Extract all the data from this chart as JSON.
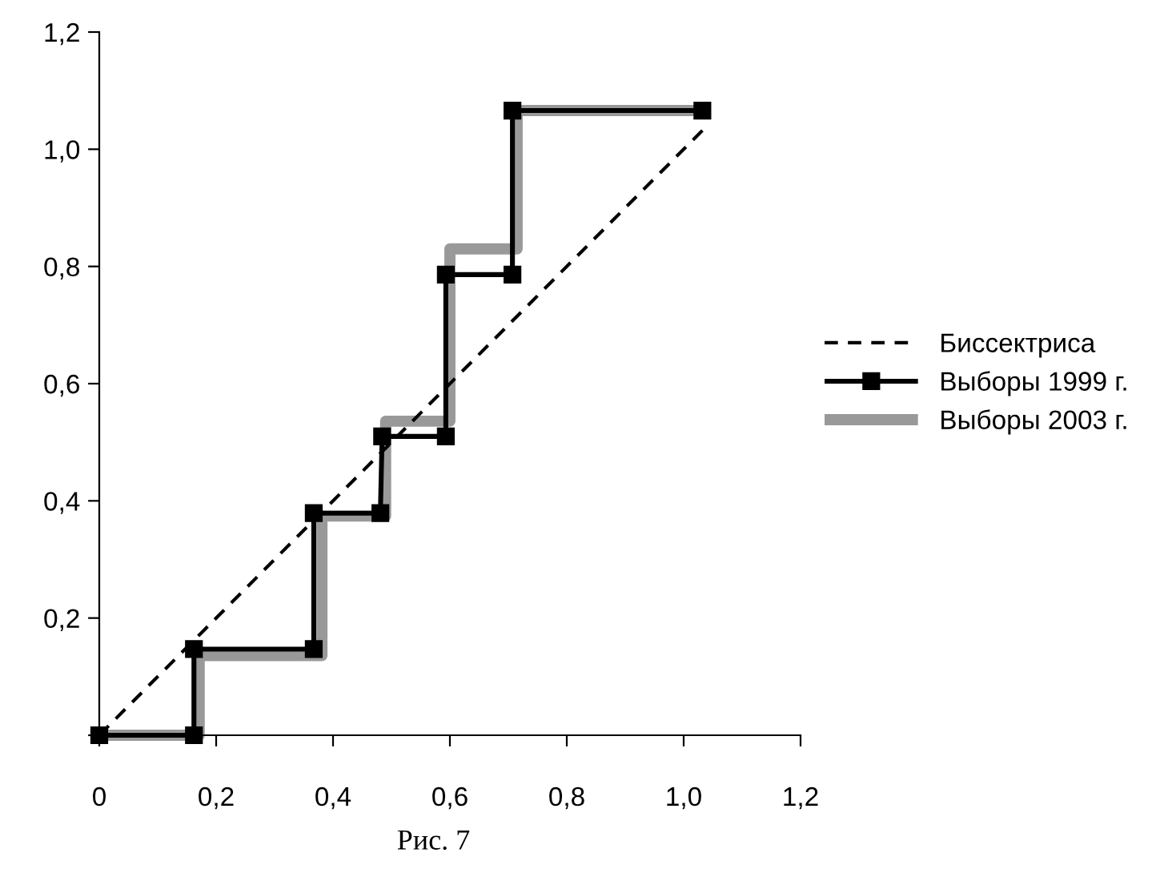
{
  "chart_data": {
    "type": "line",
    "xlim": [
      0,
      1.2
    ],
    "ylim": [
      0,
      1.2
    ],
    "xticks": [
      {
        "value": 0,
        "label": "0"
      },
      {
        "value": 0.2,
        "label": "0,2"
      },
      {
        "value": 0.4,
        "label": "0,4"
      },
      {
        "value": 0.6,
        "label": "0,6"
      },
      {
        "value": 0.8,
        "label": "0,8"
      },
      {
        "value": 1.0,
        "label": "1,0"
      },
      {
        "value": 1.2,
        "label": "1,2"
      }
    ],
    "yticks": [
      {
        "value": 0,
        "label": null
      },
      {
        "value": 0.2,
        "label": "0,2"
      },
      {
        "value": 0.4,
        "label": "0,4"
      },
      {
        "value": 0.6,
        "label": "0,6"
      },
      {
        "value": 0.8,
        "label": "0,8"
      },
      {
        "value": 1.0,
        "label": "1,0"
      },
      {
        "value": 1.2,
        "label": "1,2"
      }
    ],
    "grid": false,
    "legend": "right",
    "series": [
      {
        "name": "Биссектриса",
        "color": "#000000",
        "line_style": "dashed",
        "x": [
          0,
          1.04
        ],
        "values": [
          0,
          1.04
        ]
      },
      {
        "name": "Выборы 1999 г.",
        "color": "#000000",
        "line_style": "solid",
        "marker": "square",
        "x": [
          0,
          0.162,
          0.162,
          0.367,
          0.367,
          0.481,
          0.484,
          0.593,
          0.593,
          0.707,
          0.707,
          1.032
        ],
        "values": [
          0,
          0,
          0.147,
          0.147,
          0.379,
          0.379,
          0.51,
          0.51,
          0.786,
          0.786,
          1.066,
          1.066
        ]
      },
      {
        "name": "Выборы 2003 г.",
        "color": "#999999",
        "line_style": "solid",
        "marker": "none",
        "x": [
          0,
          0.171,
          0.171,
          0.381,
          0.381,
          0.49,
          0.49,
          0.6,
          0.6,
          0.715,
          0.715,
          1.03
        ],
        "values": [
          0,
          0,
          0.136,
          0.136,
          0.374,
          0.374,
          0.536,
          0.536,
          0.83,
          0.83,
          1.066,
          1.066
        ]
      }
    ],
    "annotations": [
      "Рис. 7"
    ]
  }
}
